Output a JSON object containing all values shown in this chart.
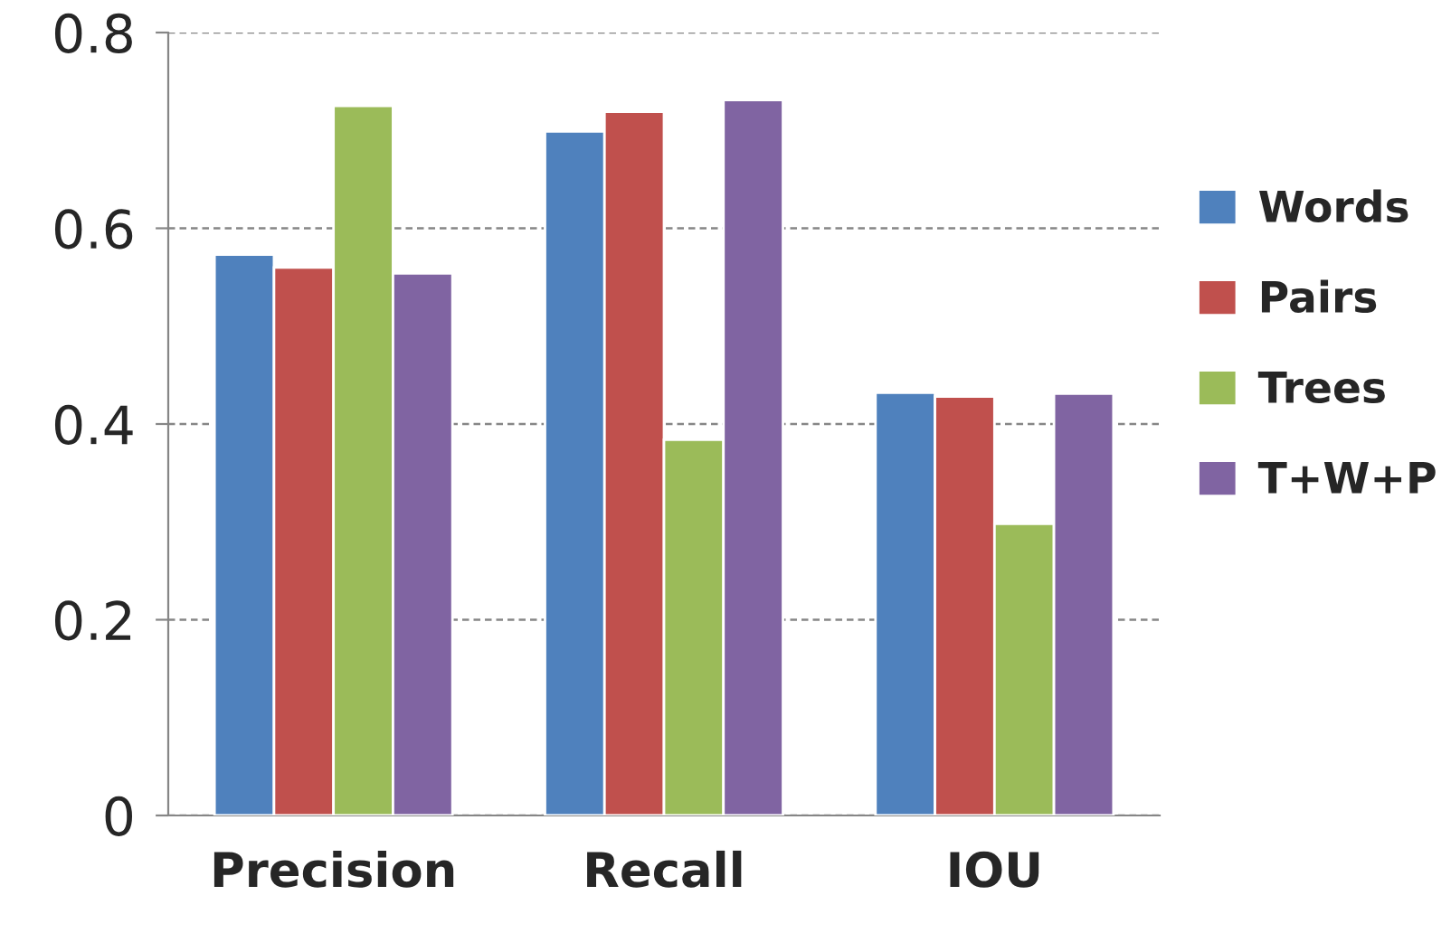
{
  "chart_data": {
    "type": "bar",
    "categories": [
      "Precision",
      "Recall",
      "IOU"
    ],
    "series": [
      {
        "name": "Words",
        "color": "#4f81bd",
        "values": [
          0.573,
          0.699,
          0.432
        ]
      },
      {
        "name": "Pairs",
        "color": "#c0504d",
        "values": [
          0.56,
          0.719,
          0.428
        ]
      },
      {
        "name": "Trees",
        "color": "#9bbb59",
        "values": [
          0.725,
          0.384,
          0.298
        ]
      },
      {
        "name": "T+W+P",
        "color": "#8064a2",
        "values": [
          0.554,
          0.731,
          0.431
        ]
      }
    ],
    "ylim": [
      0,
      0.8
    ],
    "yticks": [
      0,
      0.2,
      0.4,
      0.6,
      0.8
    ],
    "grid": "y",
    "legend": "right"
  }
}
